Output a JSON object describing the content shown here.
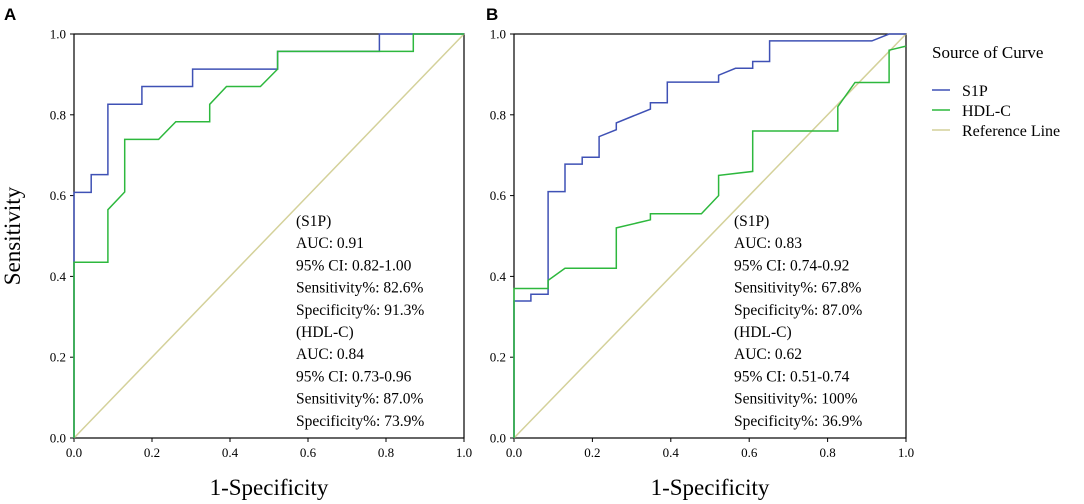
{
  "chart_data": [
    {
      "panel": "A",
      "type": "line",
      "xlabel": "1-Specificity",
      "ylabel": "Sensitivity",
      "xlim": [
        0,
        1
      ],
      "ylim": [
        0,
        1
      ],
      "xticks": [
        "0.0",
        "0.2",
        "0.4",
        "0.6",
        "0.8",
        "1.0"
      ],
      "yticks": [
        "0.0",
        "0.2",
        "0.4",
        "0.6",
        "0.8",
        "1.0"
      ],
      "series": [
        {
          "name": "S1P",
          "color": "#3f51b5",
          "points": [
            [
              0,
              0
            ],
            [
              0,
              0.608
            ],
            [
              0.044,
              0.608
            ],
            [
              0.044,
              0.652
            ],
            [
              0.087,
              0.652
            ],
            [
              0.087,
              0.826
            ],
            [
              0.174,
              0.826
            ],
            [
              0.174,
              0.87
            ],
            [
              0.304,
              0.87
            ],
            [
              0.304,
              0.913
            ],
            [
              0.522,
              0.913
            ],
            [
              0.522,
              0.957
            ],
            [
              0.783,
              0.957
            ],
            [
              0.783,
              1.0
            ],
            [
              1.0,
              1.0
            ]
          ]
        },
        {
          "name": "HDL-C",
          "color": "#2db83d",
          "points": [
            [
              0,
              0
            ],
            [
              0,
              0.435
            ],
            [
              0.087,
              0.435
            ],
            [
              0.087,
              0.565
            ],
            [
              0.13,
              0.609
            ],
            [
              0.13,
              0.739
            ],
            [
              0.217,
              0.739
            ],
            [
              0.261,
              0.783
            ],
            [
              0.348,
              0.783
            ],
            [
              0.348,
              0.826
            ],
            [
              0.391,
              0.87
            ],
            [
              0.478,
              0.87
            ],
            [
              0.522,
              0.913
            ],
            [
              0.522,
              0.957
            ],
            [
              0.87,
              0.957
            ],
            [
              0.87,
              1.0
            ],
            [
              1.0,
              1.0
            ]
          ]
        },
        {
          "name": "Reference Line",
          "color": "#d4d19a",
          "points": [
            [
              0,
              0
            ],
            [
              1,
              1
            ]
          ]
        }
      ],
      "annotation": [
        "(S1P)",
        "AUC: 0.91",
        "95% CI: 0.82-1.00",
        "Sensitivity%: 82.6%",
        "Specificity%: 91.3%",
        "(HDL-C)",
        "AUC: 0.84",
        "95% CI: 0.73-0.96",
        "Sensitivity%: 87.0%",
        "Specificity%: 73.9%"
      ]
    },
    {
      "panel": "B",
      "type": "line",
      "xlabel": "1-Specificity",
      "ylabel": "",
      "xlim": [
        0,
        1
      ],
      "ylim": [
        0,
        1
      ],
      "xticks": [
        "0.0",
        "0.2",
        "0.4",
        "0.6",
        "0.8",
        "1.0"
      ],
      "yticks": [
        "0.0",
        "0.2",
        "0.4",
        "0.6",
        "0.8",
        "1.0"
      ],
      "series": [
        {
          "name": "S1P",
          "color": "#3f51b5",
          "points": [
            [
              0,
              0
            ],
            [
              0,
              0.339
            ],
            [
              0.043,
              0.339
            ],
            [
              0.043,
              0.356
            ],
            [
              0.087,
              0.356
            ],
            [
              0.087,
              0.61
            ],
            [
              0.13,
              0.61
            ],
            [
              0.13,
              0.678
            ],
            [
              0.174,
              0.678
            ],
            [
              0.174,
              0.695
            ],
            [
              0.217,
              0.695
            ],
            [
              0.217,
              0.746
            ],
            [
              0.261,
              0.763
            ],
            [
              0.261,
              0.78
            ],
            [
              0.304,
              0.797
            ],
            [
              0.348,
              0.814
            ],
            [
              0.348,
              0.83
            ],
            [
              0.391,
              0.83
            ],
            [
              0.391,
              0.881
            ],
            [
              0.522,
              0.881
            ],
            [
              0.522,
              0.898
            ],
            [
              0.565,
              0.915
            ],
            [
              0.609,
              0.915
            ],
            [
              0.609,
              0.932
            ],
            [
              0.652,
              0.932
            ],
            [
              0.652,
              0.983
            ],
            [
              0.913,
              0.983
            ],
            [
              0.957,
              1.0
            ],
            [
              1.0,
              1.0
            ]
          ]
        },
        {
          "name": "HDL-C",
          "color": "#2db83d",
          "points": [
            [
              0,
              0
            ],
            [
              0,
              0.37
            ],
            [
              0.087,
              0.37
            ],
            [
              0.087,
              0.39
            ],
            [
              0.13,
              0.42
            ],
            [
              0.261,
              0.42
            ],
            [
              0.261,
              0.52
            ],
            [
              0.348,
              0.54
            ],
            [
              0.348,
              0.555
            ],
            [
              0.478,
              0.555
            ],
            [
              0.522,
              0.6
            ],
            [
              0.522,
              0.65
            ],
            [
              0.609,
              0.66
            ],
            [
              0.609,
              0.76
            ],
            [
              0.826,
              0.76
            ],
            [
              0.826,
              0.82
            ],
            [
              0.87,
              0.88
            ],
            [
              0.957,
              0.88
            ],
            [
              0.957,
              0.96
            ],
            [
              1.0,
              0.97
            ]
          ]
        },
        {
          "name": "Reference Line",
          "color": "#d4d19a",
          "points": [
            [
              0,
              0
            ],
            [
              1,
              1
            ]
          ]
        }
      ],
      "annotation": [
        "(S1P)",
        "AUC: 0.83",
        "95% CI: 0.74-0.92",
        "Sensitivity%: 67.8%",
        "Specificity%: 87.0%",
        "(HDL-C)",
        "AUC: 0.62",
        "95% CI: 0.51-0.74",
        "Sensitivity%: 100%",
        "Specificity%: 36.9%"
      ]
    }
  ],
  "legend": {
    "title": "Source of Curve",
    "items": [
      {
        "label": "S1P",
        "color": "#3f51b5"
      },
      {
        "label": "HDL-C",
        "color": "#2db83d"
      },
      {
        "label": "Reference Line",
        "color": "#d4d19a"
      }
    ]
  }
}
